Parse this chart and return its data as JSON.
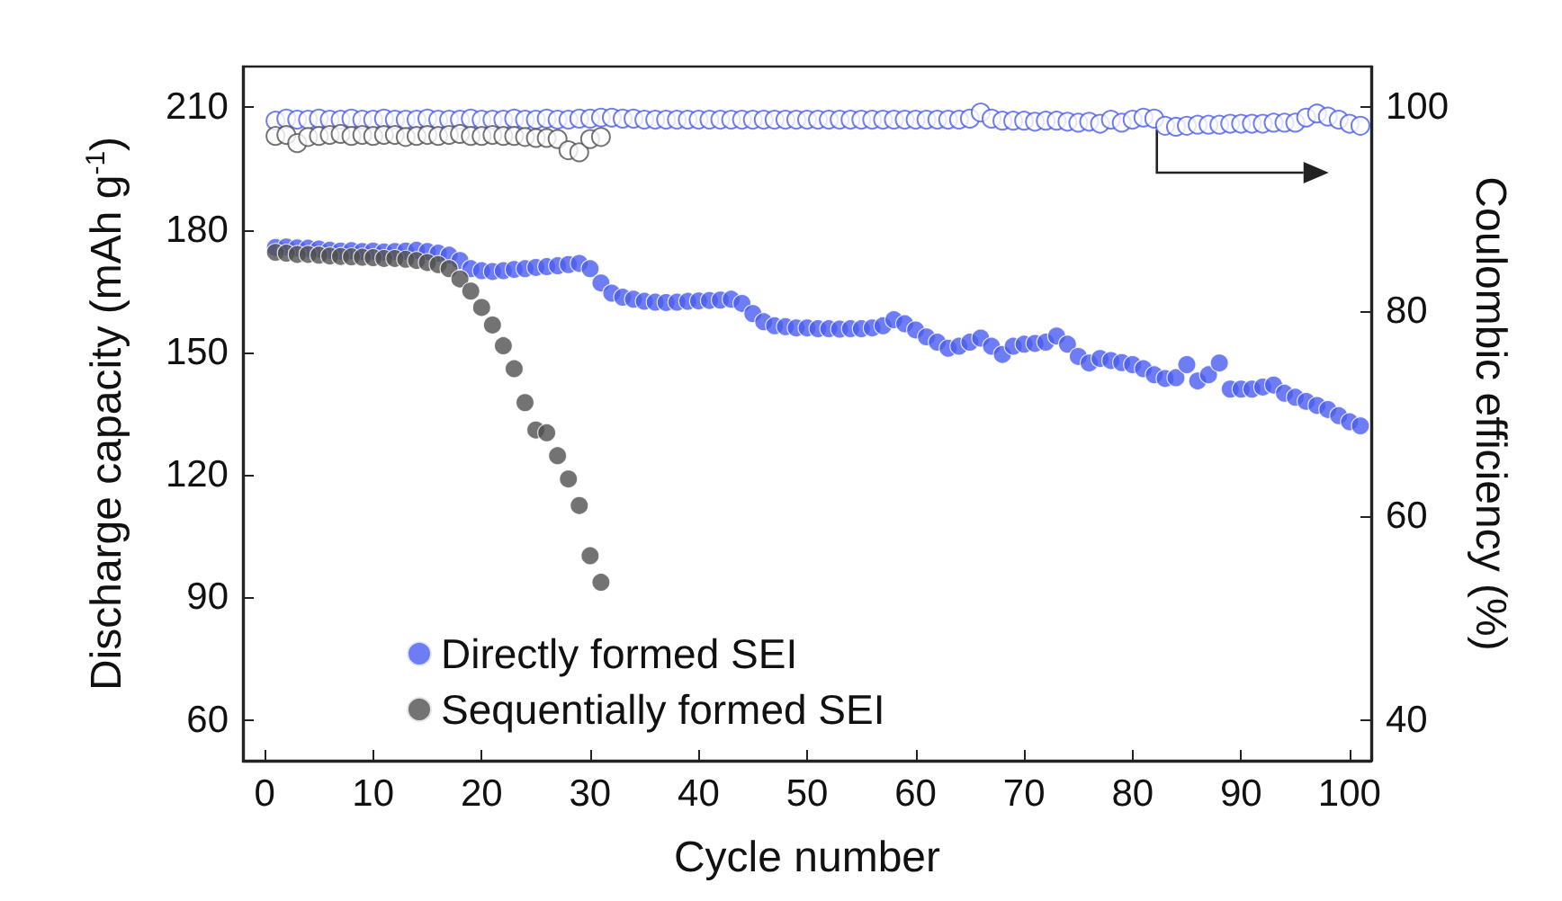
{
  "chart_data": {
    "type": "scatter",
    "xlabel": "Cycle number",
    "ylabel": "Discharge capacity (mAh g$^{-1}$)",
    "y2label": "Coulombic efficiency (%)",
    "x": [
      1,
      2,
      3,
      4,
      5,
      6,
      7,
      8,
      9,
      10,
      11,
      12,
      13,
      14,
      15,
      16,
      17,
      18,
      19,
      20,
      21,
      22,
      23,
      24,
      25,
      26,
      27,
      28,
      29,
      30,
      31,
      32,
      33,
      34,
      35,
      36,
      37,
      38,
      39,
      40,
      41,
      42,
      43,
      44,
      45,
      46,
      47,
      48,
      49,
      50,
      51,
      52,
      53,
      54,
      55,
      56,
      57,
      58,
      59,
      60,
      61,
      62,
      63,
      64,
      65,
      66,
      67,
      68,
      69,
      70,
      71,
      72,
      73,
      74,
      75,
      76,
      77,
      78,
      79,
      80,
      81,
      82,
      83,
      84,
      85,
      86,
      87,
      88,
      89,
      90,
      91,
      92,
      93,
      94,
      95,
      96,
      97,
      98,
      99,
      100,
      101
    ],
    "xlim": [
      -2,
      102
    ],
    "xticks": [
      0,
      10,
      20,
      30,
      40,
      50,
      60,
      70,
      80,
      90,
      100
    ],
    "ylim": [
      50,
      220
    ],
    "yticks": [
      60,
      90,
      120,
      150,
      180,
      210
    ],
    "y2lim": [
      36,
      104
    ],
    "y2ticks": [
      40,
      60,
      80,
      100
    ],
    "legend": "bottom left",
    "grid": false,
    "series": [
      {
        "name": "Directly formed SEI",
        "color": "#4a5cf0",
        "marker": "circle",
        "values": [
          175.7,
          175.8,
          175.6,
          175.5,
          175.3,
          175,
          174.8,
          174.9,
          174.7,
          174.8,
          174.6,
          174.7,
          174.8,
          175,
          174.7,
          174.3,
          173.8,
          172.5,
          170.5,
          170,
          169.8,
          170,
          170.3,
          170.5,
          170.8,
          171,
          171.2,
          171.5,
          171.8,
          170.5,
          167,
          164.5,
          163.5,
          163,
          162.5,
          162.3,
          162.2,
          162.3,
          162.5,
          162.6,
          162.7,
          162.8,
          163,
          162,
          159.5,
          157.5,
          156.5,
          156.3,
          156,
          156,
          155.8,
          155.8,
          155.7,
          155.8,
          155.8,
          156,
          156.5,
          158,
          157,
          155.5,
          153.8,
          152.5,
          151,
          151.5,
          152.5,
          153.5,
          151.5,
          149.5,
          151.5,
          152,
          152.2,
          152.5,
          154,
          152,
          149,
          147.4,
          148.5,
          148,
          147.5,
          147,
          146,
          144.5,
          143.6,
          143.8,
          147,
          143,
          144.5,
          147.4,
          141,
          141,
          141,
          141.5,
          142,
          140,
          139,
          138,
          137,
          136,
          134.5,
          133,
          132
        ]
      },
      {
        "name": "Sequentially formed SEI",
        "color": "#505050",
        "marker": "circle",
        "x": [
          1,
          2,
          3,
          4,
          5,
          6,
          7,
          8,
          9,
          10,
          11,
          12,
          13,
          14,
          15,
          16,
          17,
          18,
          19,
          20,
          21,
          22,
          23,
          24,
          25,
          26,
          27,
          28,
          29,
          30,
          31
        ],
        "values": [
          174.5,
          174.3,
          174,
          174,
          173.8,
          173.6,
          173.5,
          173.4,
          173.3,
          173.2,
          173,
          173,
          172.8,
          172.5,
          172,
          171.5,
          170.5,
          168,
          165,
          161,
          156.7,
          151.6,
          146,
          137.7,
          131,
          130.3,
          124.7,
          119,
          112.5,
          100.2,
          93.7
        ]
      },
      {
        "color": "#4a5cf0",
        "marker": "circle",
        "axis": "y2",
        "values": [
          98.7,
          98.9,
          98.8,
          98.8,
          98.9,
          98.8,
          98.8,
          98.9,
          98.8,
          98.8,
          98.9,
          98.8,
          98.8,
          98.8,
          98.9,
          98.8,
          98.8,
          98.8,
          98.9,
          98.8,
          98.8,
          98.8,
          98.9,
          98.8,
          98.8,
          98.9,
          98.8,
          98.8,
          98.9,
          98.9,
          99,
          99,
          98.9,
          98.9,
          98.8,
          98.8,
          98.8,
          98.8,
          98.8,
          98.8,
          98.8,
          98.8,
          98.8,
          98.8,
          98.8,
          98.8,
          98.8,
          98.8,
          98.8,
          98.8,
          98.8,
          98.8,
          98.8,
          98.8,
          98.8,
          98.8,
          98.8,
          98.8,
          98.8,
          98.8,
          98.8,
          98.8,
          98.8,
          98.8,
          98.9,
          99.5,
          98.9,
          98.7,
          98.7,
          98.7,
          98.6,
          98.7,
          98.7,
          98.6,
          98.5,
          98.6,
          98.4,
          98.8,
          98.5,
          98.8,
          99,
          98.9,
          98.2,
          98.1,
          98.2,
          98.3,
          98.3,
          98.3,
          98.4,
          98.4,
          98.4,
          98.4,
          98.5,
          98.5,
          98.5,
          99,
          99.4,
          99.1,
          98.8,
          98.4,
          98.2
        ]
      },
      {
        "color": "#505050",
        "marker": "circle",
        "axis": "y2",
        "x": [
          1,
          2,
          3,
          4,
          5,
          6,
          7,
          8,
          9,
          10,
          11,
          12,
          13,
          14,
          15,
          16,
          17,
          18,
          19,
          20,
          21,
          22,
          23,
          24,
          25,
          26,
          27,
          28,
          29,
          30,
          31
        ],
        "values": [
          97.2,
          97.3,
          96.5,
          97.1,
          97.2,
          97.3,
          97.4,
          97.2,
          97.3,
          97.2,
          97.3,
          97.3,
          97.1,
          97.2,
          97.3,
          97.2,
          97.3,
          97.4,
          97.2,
          97.2,
          97.3,
          97.2,
          97.2,
          97.1,
          97,
          97,
          96.9,
          95.8,
          95.6,
          96.9,
          97.1
        ]
      }
    ]
  }
}
